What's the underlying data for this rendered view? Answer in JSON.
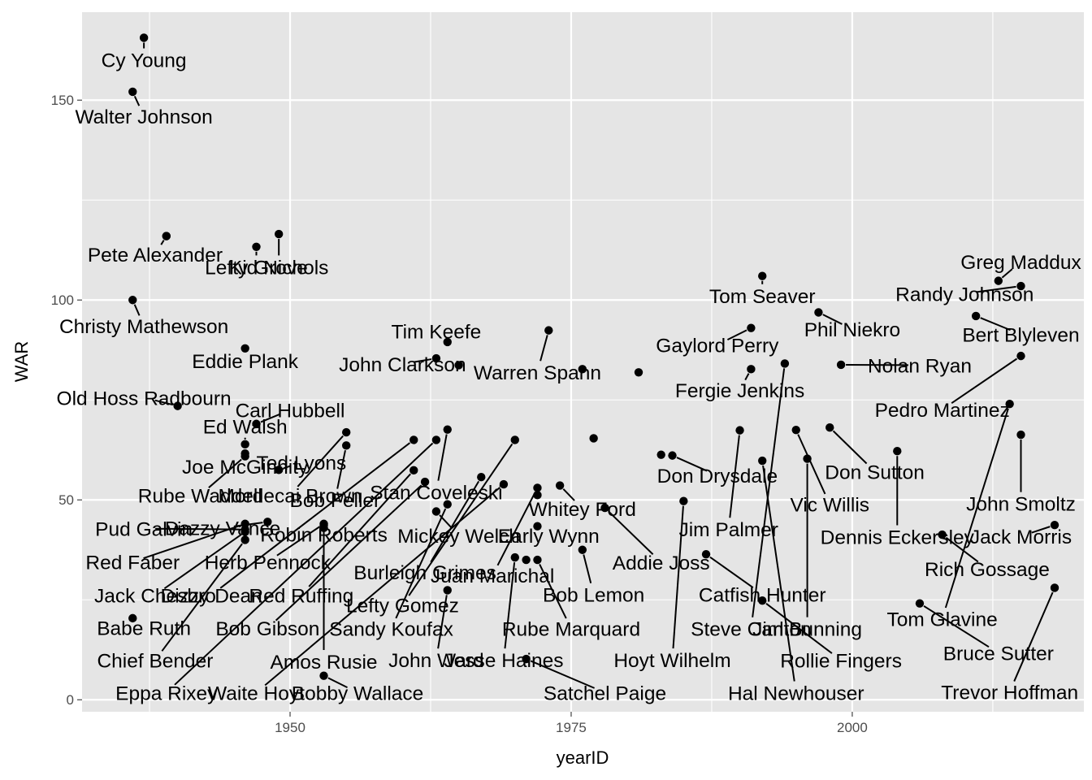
{
  "chart_data": {
    "type": "scatter",
    "xlabel": "yearID",
    "ylabel": "WAR",
    "xlim": [
      1931.5,
      2020.6
    ],
    "ylim": [
      -3,
      172
    ],
    "x_ticks": [
      1950,
      1975,
      2000
    ],
    "y_ticks": [
      0,
      50,
      100,
      150
    ],
    "grid": true,
    "point_color": "#000000",
    "panel_color": "#e5e5e5",
    "grid_color": "#ffffff",
    "points": [
      {
        "name": "Cy Young",
        "x": 1937,
        "y": 165.6,
        "lx": 1937,
        "ly": 160.1
      },
      {
        "name": "Walter Johnson",
        "x": 1936,
        "y": 152.1,
        "lx": 1937,
        "ly": 146.0
      },
      {
        "name": "Pete Alexander",
        "x": 1939,
        "y": 116.0,
        "lx": 1938,
        "ly": 111.4
      },
      {
        "name": "Lefty Grove",
        "x": 1947,
        "y": 113.3,
        "lx": 1947,
        "ly": 108.3
      },
      {
        "name": "Kid Nichols",
        "x": 1949,
        "y": 116.5,
        "lx": 1949,
        "ly": 108.3
      },
      {
        "name": "Christy Mathewson",
        "x": 1936,
        "y": 100.0,
        "lx": 1937,
        "ly": 93.5
      },
      {
        "name": "Eddie Plank",
        "x": 1946,
        "y": 87.9,
        "lx": 1946,
        "ly": 84.8
      },
      {
        "name": "Tim Keefe",
        "x": 1964,
        "y": 89.5,
        "lx": 1963,
        "ly": 92.2
      },
      {
        "name": "John Clarkson",
        "x": 1963,
        "y": 85.4,
        "lx": 1960,
        "ly": 84.0
      },
      {
        "name": "Warren Spahn",
        "x": 1973,
        "y": 92.4,
        "lx": 1972,
        "ly": 82.0
      },
      {
        "name": "Old Hoss Radbourn",
        "x": 1940,
        "y": 73.5,
        "lx": 1937,
        "ly": 75.6
      },
      {
        "name": "Carl Hubbell",
        "x": 1947,
        "y": 69.0,
        "lx": 1950,
        "ly": 72.5
      },
      {
        "name": "Ed Walsh",
        "x": 1946,
        "y": 63.9,
        "lx": 1946,
        "ly": 68.4
      },
      {
        "name": "Joe McGinnity",
        "x": 1946,
        "y": 61.6,
        "lx": 1946,
        "ly": 58.4
      },
      {
        "name": "Ted Lyons",
        "x": 1949,
        "y": 57.5,
        "lx": 1951,
        "ly": 59.4
      },
      {
        "name": "Rube Waddell",
        "x": 1946,
        "y": 60.9,
        "lx": 1942,
        "ly": 51.2
      },
      {
        "name": "Mordecai Brown",
        "x": 1955,
        "y": 66.9,
        "lx": 1950,
        "ly": 51.2
      },
      {
        "name": "Bob Feller",
        "x": 1955,
        "y": 63.6,
        "lx": 1954,
        "ly": 50.0
      },
      {
        "name": "Stan Coveleski",
        "x": 1964,
        "y": 67.6,
        "lx": 1963,
        "ly": 52.0
      },
      {
        "name": "Whitey Ford",
        "x": 1974,
        "y": 53.6,
        "lx": 1976,
        "ly": 47.8
      },
      {
        "name": "Pud Galvin",
        "x": 1946,
        "y": 42.6,
        "lx": 1937,
        "ly": 42.8
      },
      {
        "name": "Dazzy Vance",
        "x": 1948,
        "y": 44.5,
        "lx": 1944,
        "ly": 43.0
      },
      {
        "name": "Robin Roberts",
        "x": 1953,
        "y": 43.0,
        "lx": 1953,
        "ly": 41.4
      },
      {
        "name": "Mickey Welch",
        "x": 1963,
        "y": 47.1,
        "lx": 1965,
        "ly": 41.1
      },
      {
        "name": "Early Wynn",
        "x": 1972,
        "y": 43.4,
        "lx": 1973,
        "ly": 41.1
      },
      {
        "name": "Red Faber",
        "x": 1946,
        "y": 44.0,
        "lx": 1936,
        "ly": 34.5
      },
      {
        "name": "Herb Pennock",
        "x": 1953,
        "y": 44.0,
        "lx": 1948,
        "ly": 34.5
      },
      {
        "name": "Addie Joss",
        "x": 1978,
        "y": 48.0,
        "lx": 1983,
        "ly": 34.4
      },
      {
        "name": "Jim Palmer",
        "x": 1990,
        "y": 67.4,
        "lx": 1989,
        "ly": 42.7
      },
      {
        "name": "Burleigh Grimes",
        "x": 1967,
        "y": 55.7,
        "lx": 1962,
        "ly": 32.0
      },
      {
        "name": "Juan Marichal",
        "x": 1972,
        "y": 53.0,
        "lx": 1968,
        "ly": 31.1
      },
      {
        "name": "Bob Lemon",
        "x": 1976,
        "y": 37.5,
        "lx": 1977,
        "ly": 26.4
      },
      {
        "name": "Catfish Hunter",
        "x": 1987,
        "y": 36.4,
        "lx": 1992,
        "ly": 26.4
      },
      {
        "name": "Jack Chesbro",
        "x": 1946,
        "y": 42.0,
        "lx": 1938,
        "ly": 26.2
      },
      {
        "name": "Dizzy Dean",
        "x": 1961,
        "y": 65.0,
        "lx": 1943,
        "ly": 26.2
      },
      {
        "name": "Red Ruffing",
        "x": 1961,
        "y": 57.4,
        "lx": 1951,
        "ly": 26.2
      },
      {
        "name": "Lefty Gomez",
        "x": 1970,
        "y": 65.0,
        "lx": 1960,
        "ly": 23.7
      },
      {
        "name": "Babe Ruth",
        "x": 1936,
        "y": 20.4,
        "lx": 1937,
        "ly": 18.0
      },
      {
        "name": "Bob Gibson",
        "x": 1962,
        "y": 54.5,
        "lx": 1948,
        "ly": 17.9
      },
      {
        "name": "Sandy Koufax",
        "x": 1964,
        "y": 48.9,
        "lx": 1959,
        "ly": 17.8
      },
      {
        "name": "Rube Marquard",
        "x": 1972,
        "y": 35.0,
        "lx": 1975,
        "ly": 17.8
      },
      {
        "name": "Steve Carlton",
        "x": 1994,
        "y": 84.1,
        "lx": 1991,
        "ly": 17.8
      },
      {
        "name": "Jim Bunning",
        "x": 1996,
        "y": 60.3,
        "lx": 1996,
        "ly": 17.8
      },
      {
        "name": "Chief Bender",
        "x": 1946,
        "y": 40.0,
        "lx": 1938,
        "ly": 9.9
      },
      {
        "name": "Amos Rusie",
        "x": 1953,
        "y": 43.7,
        "lx": 1953,
        "ly": 9.6
      },
      {
        "name": "John Ward",
        "x": 1964,
        "y": 27.4,
        "lx": 1963,
        "ly": 10.0
      },
      {
        "name": "Jesse Haines",
        "x": 1970,
        "y": 35.6,
        "lx": 1969,
        "ly": 10.0
      },
      {
        "name": "Hoyt Wilhelm",
        "x": 1985,
        "y": 49.7,
        "lx": 1984,
        "ly": 10.0
      },
      {
        "name": "Rollie Fingers",
        "x": 1992,
        "y": 24.8,
        "lx": 1999,
        "ly": 9.9
      },
      {
        "name": "Eppa Rixey",
        "x": 1963,
        "y": 65.0,
        "lx": 1939,
        "ly": 1.8
      },
      {
        "name": "Waite Hoyt",
        "x": 1969,
        "y": 53.9,
        "lx": 1947,
        "ly": 1.8
      },
      {
        "name": "Bobby Wallace",
        "x": 1953,
        "y": 6.0,
        "lx": 1956,
        "ly": 1.8
      },
      {
        "name": "Satchel Paige",
        "x": 1971,
        "y": 10.2,
        "lx": 1978,
        "ly": 1.8
      },
      {
        "name": "Hal Newhouser",
        "x": 1992,
        "y": 59.8,
        "lx": 1995,
        "ly": 1.8
      },
      {
        "name": "Tom Seaver",
        "x": 1992,
        "y": 106.0,
        "lx": 1992,
        "ly": 101.1
      },
      {
        "name": "Gaylord Perry",
        "x": 1991,
        "y": 93.0,
        "lx": 1988,
        "ly": 88.8
      },
      {
        "name": "Phil Niekro",
        "x": 1997,
        "y": 96.9,
        "lx": 2000,
        "ly": 92.7
      },
      {
        "name": "Greg Maddux",
        "x": 2013,
        "y": 104.8,
        "lx": 2015,
        "ly": 109.6
      },
      {
        "name": "Randy Johnson",
        "x": 2015,
        "y": 103.5,
        "lx": 2010,
        "ly": 101.6
      },
      {
        "name": "Bert Blyleven",
        "x": 2011,
        "y": 96.0,
        "lx": 2015,
        "ly": 91.4
      },
      {
        "name": "Nolan Ryan",
        "x": 1999,
        "y": 83.8,
        "lx": 2006,
        "ly": 83.7
      },
      {
        "name": "Fergie Jenkins",
        "x": 1991,
        "y": 82.7,
        "lx": 1990,
        "ly": 77.5
      },
      {
        "name": "Pedro Martinez",
        "x": 2015,
        "y": 86.0,
        "lx": 2008,
        "ly": 72.6
      },
      {
        "name": "Don Sutton",
        "x": 1998,
        "y": 68.1,
        "lx": 2002,
        "ly": 57.1
      },
      {
        "name": "Vic Willis",
        "x": 1995,
        "y": 67.5,
        "lx": 1998,
        "ly": 48.9
      },
      {
        "name": "Don Drysdale",
        "x": 1984,
        "y": 61.1,
        "lx": 1988,
        "ly": 56.1
      },
      {
        "name": "John Smoltz",
        "x": 2015,
        "y": 66.3,
        "lx": 2015,
        "ly": 49.1
      },
      {
        "name": "Dennis Eckersley",
        "x": 2004,
        "y": 62.2,
        "lx": 2004,
        "ly": 40.8
      },
      {
        "name": "Jack Morris",
        "x": 2018,
        "y": 43.7,
        "lx": 2015,
        "ly": 40.9
      },
      {
        "name": "Rich Gossage",
        "x": 2008,
        "y": 41.3,
        "lx": 2012,
        "ly": 32.8
      },
      {
        "name": "Tom Glavine",
        "x": 2014,
        "y": 74.0,
        "lx": 2008,
        "ly": 20.3
      },
      {
        "name": "Bruce Sutter",
        "x": 2006,
        "y": 24.1,
        "lx": 2013,
        "ly": 11.7
      },
      {
        "name": "Trevor Hoffman",
        "x": 2018,
        "y": 28.0,
        "lx": 2014,
        "ly": 2.0
      },
      {
        "name": "",
        "x": 1939,
        "y": 116.0,
        "lx": 1939,
        "ly": 116.0
      },
      {
        "name": "",
        "x": 1981,
        "y": 81.9,
        "lx": 1981,
        "ly": 81.9
      },
      {
        "name": "",
        "x": 1976,
        "y": 82.7,
        "lx": 1976,
        "ly": 82.7
      },
      {
        "name": "",
        "x": 1965,
        "y": 83.7,
        "lx": 1965,
        "ly": 83.7
      },
      {
        "name": "",
        "x": 1977,
        "y": 65.4,
        "lx": 1977,
        "ly": 65.4
      },
      {
        "name": "",
        "x": 1983,
        "y": 61.3,
        "lx": 1983,
        "ly": 61.3
      },
      {
        "name": "",
        "x": 1972,
        "y": 51.2,
        "lx": 1972,
        "ly": 51.2
      },
      {
        "name": "",
        "x": 1971,
        "y": 35.0,
        "lx": 1971,
        "ly": 35.0
      }
    ]
  }
}
